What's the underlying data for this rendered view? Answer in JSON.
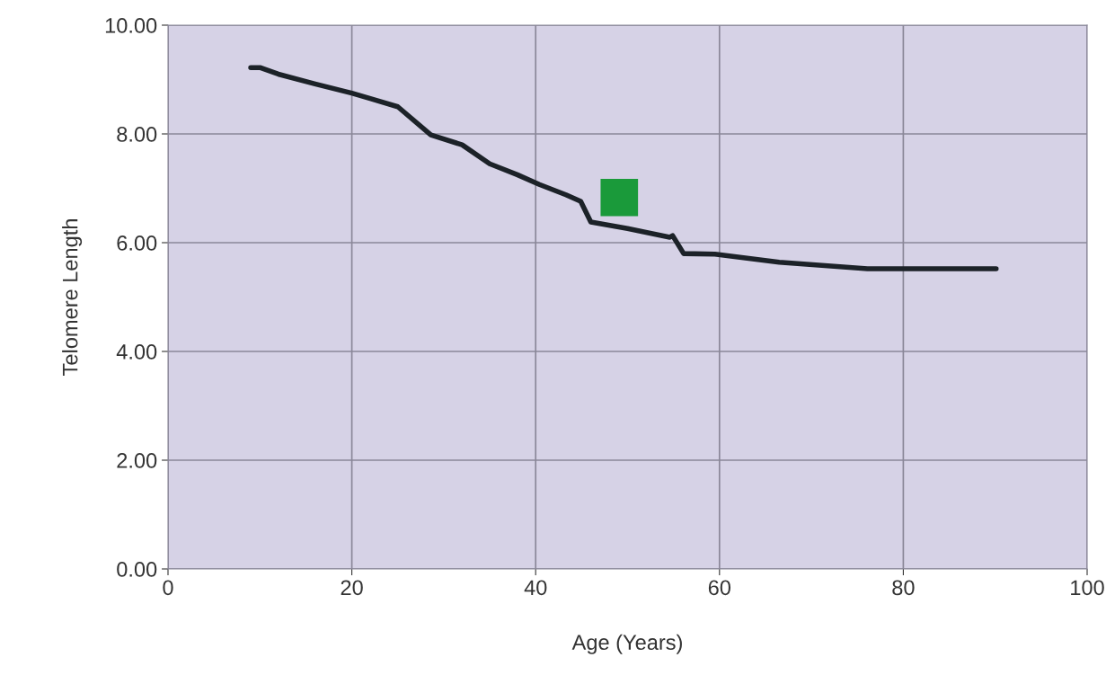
{
  "chart_data": {
    "type": "line",
    "xlabel": "Age (Years)",
    "ylabel": "Telomere Length",
    "xlim": [
      0,
      100
    ],
    "xticks": [
      0,
      20,
      40,
      60,
      80,
      100
    ],
    "ylim": [
      0,
      10
    ],
    "yticks": [
      {
        "value": 0,
        "label": "0.00"
      },
      {
        "value": 2,
        "label": "2.00"
      },
      {
        "value": 4,
        "label": "4.00"
      },
      {
        "value": 6,
        "label": "6.00"
      },
      {
        "value": 8,
        "label": "8.00"
      },
      {
        "value": 10,
        "label": "10.00"
      }
    ],
    "grid": true,
    "legend": false,
    "series": [
      {
        "color": "#1c2228",
        "marker": "none",
        "line_style": "solid",
        "x": [
          9,
          10,
          12,
          16,
          20,
          22,
          25,
          28.6,
          32,
          35,
          38,
          40.4,
          43.3,
          44.9,
          46,
          50,
          54.6,
          54.9,
          56.1,
          59.5,
          66.5,
          76.1,
          90.1
        ],
        "values": [
          9.22,
          9.22,
          9.1,
          8.92,
          8.75,
          8.65,
          8.5,
          7.98,
          7.8,
          7.45,
          7.25,
          7.07,
          6.88,
          6.76,
          6.38,
          6.26,
          6.1,
          6.13,
          5.8,
          5.79,
          5.64,
          5.52,
          5.52
        ]
      },
      {
        "type": "scatter",
        "color": "#1a9a3a",
        "marker": "square",
        "x": [
          49.1
        ],
        "values": [
          6.83
        ]
      }
    ]
  }
}
